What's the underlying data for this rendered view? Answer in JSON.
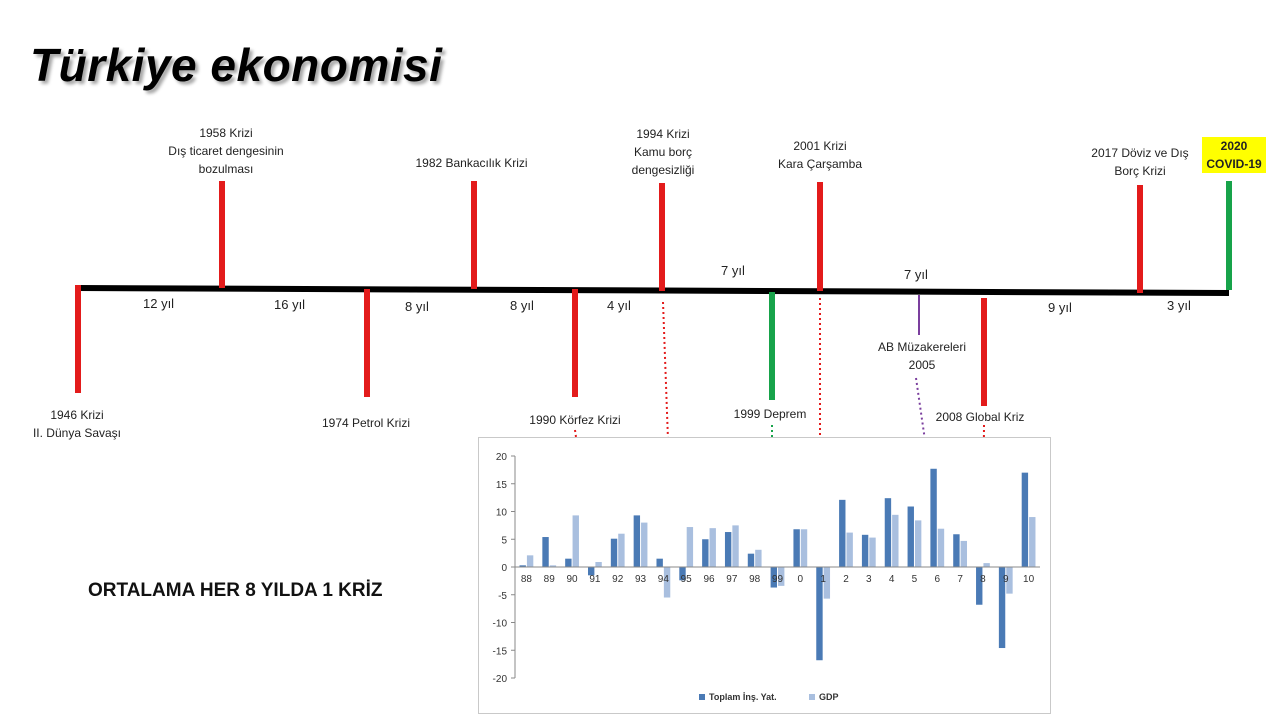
{
  "title": "Türkiye ekonomisi",
  "summary": "ORTALAMA HER 8 YILDA 1 KRİZ",
  "events": {
    "e1946": {
      "line1": "1946  Krizi",
      "line2": "II. Dünya Savaşı"
    },
    "e1958": {
      "line1": "1958  Krizi",
      "line2": "Dış ticaret dengesinin",
      "line3": "bozulması"
    },
    "e1974": {
      "line1": "1974  Petrol Krizi"
    },
    "e1982": {
      "line1": "1982  Bankacılık Krizi"
    },
    "e1990": {
      "line1": "1990  Körfez Krizi"
    },
    "e1994": {
      "line1": "1994  Krizi",
      "line2": "Kamu borç",
      "line3": "dengesizliği"
    },
    "e1999": {
      "line1": "1999  Deprem"
    },
    "e2001": {
      "line1": "2001  Krizi",
      "line2": "Kara Çarşamba"
    },
    "e2005": {
      "line1": "AB Müzakereleri",
      "line2": "2005"
    },
    "e2008": {
      "line1": "2008  Global Kriz"
    },
    "e2017": {
      "line1": "2017  Döviz ve Dış",
      "line2": "Borç Krizi"
    },
    "e2020": {
      "line1": "2020",
      "line2": "COVID-19"
    }
  },
  "intervals": [
    "12 yıl",
    "16 yıl",
    "8 yıl",
    "8 yıl",
    "4 yıl",
    "7 yıl",
    "7 yıl",
    "9 yıl",
    "3 yıl"
  ],
  "colors": {
    "crisis": "#e31b1b",
    "positive": "#17a34a",
    "ab": "#7b3f9e",
    "axis": "#000000",
    "series1": "#4a7ab5",
    "series2": "#a9bfdf"
  },
  "chart_data": {
    "type": "bar",
    "categories": [
      "88",
      "89",
      "90",
      "91",
      "92",
      "93",
      "94",
      "95",
      "96",
      "97",
      "98",
      "99",
      "0",
      "1",
      "2",
      "3",
      "4",
      "5",
      "6",
      "7",
      "8",
      "9",
      "10"
    ],
    "series": [
      {
        "name": "Toplam İnş. Yat.",
        "values": [
          0.3,
          5.4,
          1.5,
          -1.5,
          5.1,
          9.3,
          1.5,
          -2.4,
          5.0,
          6.3,
          2.4,
          -3.7,
          6.8,
          -16.8,
          12.1,
          5.8,
          12.4,
          10.9,
          17.7,
          5.9,
          -6.8,
          -14.6,
          17.0
        ]
      },
      {
        "name": "GDP",
        "values": [
          2.1,
          0.3,
          9.3,
          0.9,
          6.0,
          8.0,
          -5.5,
          7.2,
          7.0,
          7.5,
          3.1,
          -3.4,
          6.8,
          -5.7,
          6.2,
          5.3,
          9.4,
          8.4,
          6.9,
          4.7,
          0.7,
          -4.8,
          9.0
        ]
      }
    ],
    "ylim": [
      -20,
      20
    ],
    "yticks": [
      "20",
      "15",
      "10",
      "5",
      "0",
      "-5",
      "-10",
      "-15",
      "-20"
    ],
    "yticks_values": [
      20,
      15,
      10,
      5,
      0,
      -5,
      -10,
      -15,
      -20
    ],
    "legend": "bottom"
  }
}
